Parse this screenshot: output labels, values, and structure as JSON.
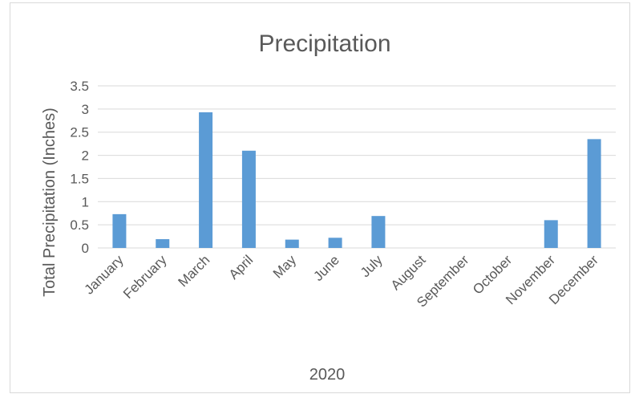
{
  "chart_data": {
    "type": "bar",
    "title": "Precipitation",
    "xlabel": "2020",
    "ylabel": "Total Precipitation (Inches)",
    "categories": [
      "January",
      "February",
      "March",
      "April",
      "May",
      "June",
      "July",
      "August",
      "September",
      "October",
      "November",
      "December"
    ],
    "values": [
      0.73,
      0.19,
      2.93,
      2.1,
      0.18,
      0.22,
      0.69,
      0,
      0,
      0,
      0.6,
      2.35
    ],
    "ylim": [
      0,
      3.5
    ],
    "yticks": [
      "0",
      "0.5",
      "1",
      "1.5",
      "2",
      "2.5",
      "3",
      "3.5"
    ],
    "grid": true,
    "legend": "none",
    "bar_color": "#5b9bd5"
  }
}
